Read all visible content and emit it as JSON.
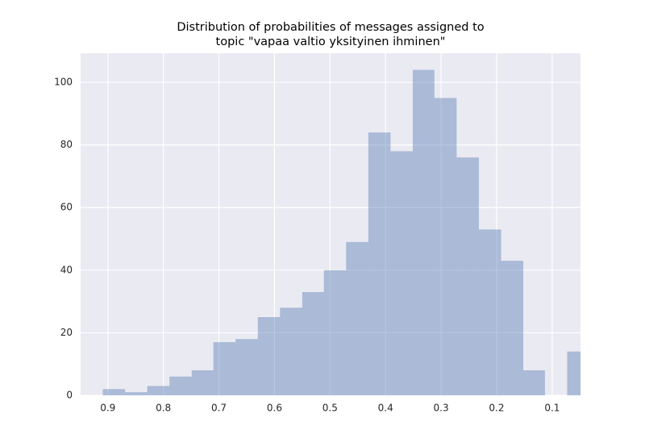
{
  "chart_data": {
    "type": "histogram",
    "title": [
      "Distribution of probabilities of messages assigned to",
      "topic \"vapaa valtio yksityinen ihminen\""
    ],
    "bins": [
      0.033,
      0.073,
      0.113,
      0.152,
      0.192,
      0.232,
      0.272,
      0.312,
      0.351,
      0.391,
      0.431,
      0.471,
      0.511,
      0.55,
      0.59,
      0.63,
      0.67,
      0.71,
      0.749,
      0.789,
      0.829,
      0.869,
      0.909
    ],
    "counts": [
      14,
      0,
      8,
      43,
      53,
      76,
      95,
      104,
      78,
      84,
      49,
      40,
      33,
      28,
      25,
      18,
      17,
      8,
      6,
      3,
      1,
      2
    ],
    "color": "#4c72b0",
    "xlim": [
      0.949,
      0.049
    ],
    "xticks": [
      0.9,
      0.8,
      0.7,
      0.6,
      0.5,
      0.4,
      0.3,
      0.2,
      0.1
    ],
    "ylim": [
      0,
      109.3
    ],
    "yticks": [
      0,
      20,
      40,
      60,
      80,
      100
    ],
    "grid": true
  }
}
